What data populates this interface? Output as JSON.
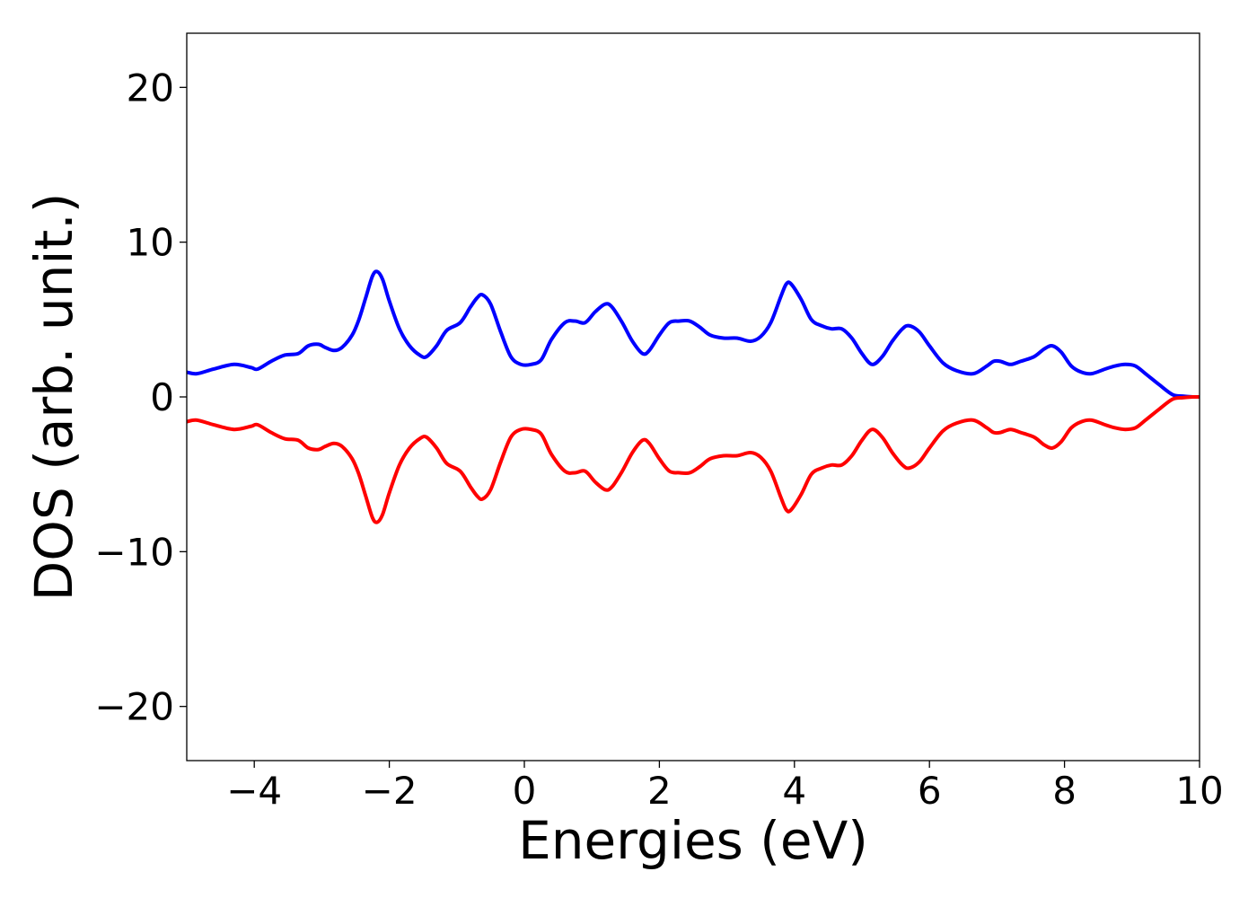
{
  "chart_data": {
    "type": "line",
    "title": "",
    "xlabel": "Energies (eV)",
    "ylabel": "DOS (arb. unit.)",
    "xlim": [
      -5,
      10
    ],
    "ylim": [
      -23.5,
      23.5
    ],
    "x_ticks": [
      {
        "value": -4,
        "label": "−4"
      },
      {
        "value": -2,
        "label": "−2"
      },
      {
        "value": 0,
        "label": "0"
      },
      {
        "value": 2,
        "label": "2"
      },
      {
        "value": 4,
        "label": "4"
      },
      {
        "value": 6,
        "label": "6"
      },
      {
        "value": 8,
        "label": "8"
      },
      {
        "value": 10,
        "label": "10"
      }
    ],
    "y_ticks": [
      {
        "value": 20,
        "label": "20"
      },
      {
        "value": 10,
        "label": "10"
      },
      {
        "value": 0,
        "label": "0"
      },
      {
        "value": -10,
        "label": "−10"
      },
      {
        "value": -20,
        "label": "−20"
      }
    ],
    "grid": false,
    "legend": "none",
    "series": [
      {
        "color": "#0000ff",
        "x": [
          -5.0,
          -4.85,
          -4.6,
          -4.3,
          -4.05,
          -3.95,
          -3.75,
          -3.55,
          -3.35,
          -3.2,
          -3.05,
          -2.95,
          -2.82,
          -2.7,
          -2.55,
          -2.45,
          -2.35,
          -2.25,
          -2.18,
          -2.1,
          -2.0,
          -1.85,
          -1.7,
          -1.55,
          -1.45,
          -1.3,
          -1.15,
          -0.95,
          -0.8,
          -0.7,
          -0.62,
          -0.5,
          -0.35,
          -0.2,
          -0.05,
          0.1,
          0.25,
          0.4,
          0.6,
          0.75,
          0.9,
          1.05,
          1.2,
          1.3,
          1.45,
          1.6,
          1.75,
          1.85,
          2.0,
          2.15,
          2.3,
          2.45,
          2.6,
          2.75,
          2.95,
          3.15,
          3.35,
          3.5,
          3.65,
          3.8,
          3.88,
          3.95,
          4.1,
          4.25,
          4.4,
          4.55,
          4.7,
          4.85,
          5.0,
          5.15,
          5.3,
          5.45,
          5.6,
          5.7,
          5.85,
          6.0,
          6.2,
          6.4,
          6.65,
          6.85,
          6.95,
          7.05,
          7.2,
          7.35,
          7.55,
          7.7,
          7.82,
          7.95,
          8.1,
          8.25,
          8.4,
          8.6,
          8.75,
          8.9,
          9.05,
          9.2,
          9.4,
          9.6,
          9.75,
          9.9,
          10.0
        ],
        "y": [
          1.6,
          1.5,
          1.8,
          2.1,
          1.9,
          1.8,
          2.3,
          2.7,
          2.8,
          3.3,
          3.4,
          3.2,
          3.0,
          3.2,
          4.0,
          5.0,
          6.4,
          7.8,
          8.1,
          7.6,
          6.2,
          4.4,
          3.3,
          2.7,
          2.6,
          3.3,
          4.3,
          4.8,
          5.8,
          6.4,
          6.6,
          6.0,
          4.2,
          2.6,
          2.1,
          2.1,
          2.4,
          3.7,
          4.8,
          4.9,
          4.8,
          5.5,
          6.0,
          5.8,
          4.8,
          3.6,
          2.8,
          3.0,
          4.0,
          4.8,
          4.9,
          4.9,
          4.5,
          4.0,
          3.8,
          3.8,
          3.6,
          3.9,
          4.8,
          6.5,
          7.3,
          7.3,
          6.3,
          5.0,
          4.6,
          4.4,
          4.4,
          3.8,
          2.8,
          2.1,
          2.6,
          3.6,
          4.4,
          4.6,
          4.2,
          3.3,
          2.2,
          1.7,
          1.5,
          2.0,
          2.3,
          2.3,
          2.1,
          2.3,
          2.6,
          3.1,
          3.3,
          2.9,
          2.0,
          1.6,
          1.5,
          1.8,
          2.0,
          2.1,
          2.0,
          1.5,
          0.8,
          0.15,
          0.05,
          0.0,
          0.0
        ]
      },
      {
        "color": "#ff0000",
        "x": [
          -5.0,
          -4.85,
          -4.6,
          -4.3,
          -4.05,
          -3.95,
          -3.75,
          -3.55,
          -3.35,
          -3.2,
          -3.05,
          -2.95,
          -2.82,
          -2.7,
          -2.55,
          -2.45,
          -2.35,
          -2.25,
          -2.18,
          -2.1,
          -2.0,
          -1.85,
          -1.7,
          -1.55,
          -1.45,
          -1.3,
          -1.15,
          -0.95,
          -0.8,
          -0.7,
          -0.62,
          -0.5,
          -0.35,
          -0.2,
          -0.05,
          0.1,
          0.25,
          0.4,
          0.6,
          0.75,
          0.9,
          1.05,
          1.2,
          1.3,
          1.45,
          1.6,
          1.75,
          1.85,
          2.0,
          2.15,
          2.3,
          2.45,
          2.6,
          2.75,
          2.95,
          3.15,
          3.35,
          3.5,
          3.65,
          3.8,
          3.88,
          3.95,
          4.1,
          4.25,
          4.4,
          4.55,
          4.7,
          4.85,
          5.0,
          5.15,
          5.3,
          5.45,
          5.6,
          5.7,
          5.85,
          6.0,
          6.2,
          6.4,
          6.65,
          6.85,
          6.95,
          7.05,
          7.2,
          7.35,
          7.55,
          7.7,
          7.82,
          7.95,
          8.1,
          8.25,
          8.4,
          8.6,
          8.75,
          8.9,
          9.05,
          9.2,
          9.4,
          9.6,
          9.75,
          9.9,
          10.0
        ],
        "y": [
          -1.6,
          -1.5,
          -1.8,
          -2.1,
          -1.9,
          -1.8,
          -2.3,
          -2.7,
          -2.8,
          -3.3,
          -3.4,
          -3.2,
          -3.0,
          -3.2,
          -4.0,
          -5.0,
          -6.4,
          -7.8,
          -8.1,
          -7.6,
          -6.2,
          -4.4,
          -3.3,
          -2.7,
          -2.6,
          -3.3,
          -4.3,
          -4.8,
          -5.8,
          -6.4,
          -6.6,
          -6.0,
          -4.2,
          -2.6,
          -2.1,
          -2.1,
          -2.4,
          -3.7,
          -4.8,
          -4.9,
          -4.8,
          -5.5,
          -6.0,
          -5.8,
          -4.8,
          -3.6,
          -2.8,
          -3.0,
          -4.0,
          -4.8,
          -4.9,
          -4.9,
          -4.5,
          -4.0,
          -3.8,
          -3.8,
          -3.6,
          -3.9,
          -4.8,
          -6.5,
          -7.3,
          -7.3,
          -6.3,
          -5.0,
          -4.6,
          -4.4,
          -4.4,
          -3.8,
          -2.8,
          -2.1,
          -2.6,
          -3.6,
          -4.4,
          -4.6,
          -4.2,
          -3.3,
          -2.2,
          -1.7,
          -1.5,
          -2.0,
          -2.3,
          -2.3,
          -2.1,
          -2.3,
          -2.6,
          -3.1,
          -3.3,
          -2.9,
          -2.0,
          -1.6,
          -1.5,
          -1.8,
          -2.0,
          -2.1,
          -2.0,
          -1.5,
          -0.8,
          -0.15,
          -0.05,
          0.0,
          0.0
        ]
      }
    ]
  }
}
